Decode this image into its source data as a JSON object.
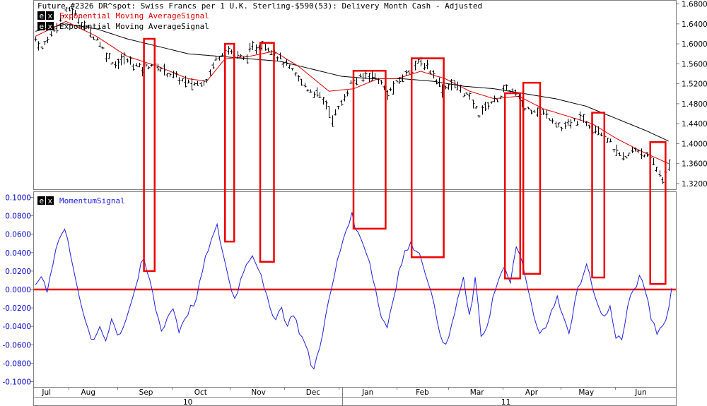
{
  "chart_data": [
    {
      "type": "line",
      "title": "Future #2326 DR^spot: Swiss Francs per 1 U.K. Sterling-$590(53): Delivery Month Cash -  Adjusted",
      "legend": [
        {
          "name": "Exponential Moving AverageSignal",
          "color": "#e00000",
          "badge": [
            "e",
            "x"
          ]
        },
        {
          "name": "Exponential Moving AverageSignal",
          "color": "#000000",
          "badge": [
            "e",
            "x"
          ]
        }
      ],
      "ylim": [
        1.31,
        1.685
      ],
      "yticks": [
        "1.6800",
        "1.6400",
        "1.6000",
        "1.5600",
        "1.5200",
        "1.4800",
        "1.4400",
        "1.4000",
        "1.3600",
        "1.3200"
      ],
      "xlabels": [
        "Jul",
        "Aug",
        "Sep",
        "Oct",
        "Nov",
        "Dec",
        "Jan",
        "Feb",
        "Mar",
        "Apr",
        "May",
        "Jun"
      ],
      "year_labels": [
        "10",
        "11"
      ],
      "price_anchors": [
        [
          0,
          1.61
        ],
        [
          2,
          1.59
        ],
        [
          5,
          1.62
        ],
        [
          8,
          1.65
        ],
        [
          11,
          1.67
        ],
        [
          14,
          1.65
        ],
        [
          17,
          1.63
        ],
        [
          20,
          1.61
        ],
        [
          23,
          1.58
        ],
        [
          26,
          1.56
        ],
        [
          29,
          1.57
        ],
        [
          32,
          1.56
        ],
        [
          35,
          1.55
        ],
        [
          38,
          1.56
        ],
        [
          41,
          1.55
        ],
        [
          44,
          1.54
        ],
        [
          47,
          1.53
        ],
        [
          50,
          1.52
        ],
        [
          53,
          1.52
        ],
        [
          56,
          1.53
        ],
        [
          59,
          1.57
        ],
        [
          62,
          1.59
        ],
        [
          65,
          1.58
        ],
        [
          68,
          1.57
        ],
        [
          71,
          1.59
        ],
        [
          74,
          1.6
        ],
        [
          77,
          1.59
        ],
        [
          80,
          1.57
        ],
        [
          83,
          1.55
        ],
        [
          86,
          1.53
        ],
        [
          89,
          1.51
        ],
        [
          92,
          1.5
        ],
        [
          95,
          1.48
        ],
        [
          97,
          1.45
        ],
        [
          100,
          1.48
        ],
        [
          103,
          1.52
        ],
        [
          106,
          1.53
        ],
        [
          109,
          1.54
        ],
        [
          112,
          1.53
        ],
        [
          115,
          1.5
        ],
        [
          118,
          1.52
        ],
        [
          121,
          1.54
        ],
        [
          124,
          1.56
        ],
        [
          127,
          1.56
        ],
        [
          130,
          1.54
        ],
        [
          133,
          1.51
        ],
        [
          136,
          1.52
        ],
        [
          139,
          1.51
        ],
        [
          142,
          1.49
        ],
        [
          145,
          1.46
        ],
        [
          148,
          1.48
        ],
        [
          151,
          1.49
        ],
        [
          154,
          1.51
        ],
        [
          157,
          1.5
        ],
        [
          160,
          1.47
        ],
        [
          163,
          1.47
        ],
        [
          166,
          1.46
        ],
        [
          169,
          1.45
        ],
        [
          172,
          1.43
        ],
        [
          175,
          1.44
        ],
        [
          178,
          1.45
        ],
        [
          181,
          1.44
        ],
        [
          184,
          1.43
        ],
        [
          187,
          1.41
        ],
        [
          190,
          1.38
        ],
        [
          193,
          1.37
        ],
        [
          196,
          1.39
        ],
        [
          199,
          1.38
        ],
        [
          202,
          1.36
        ],
        [
          205,
          1.33
        ],
        [
          207,
          1.35
        ]
      ],
      "ema_fast_anchors": [
        [
          0,
          1.615
        ],
        [
          10,
          1.645
        ],
        [
          20,
          1.615
        ],
        [
          30,
          1.575
        ],
        [
          40,
          1.555
        ],
        [
          50,
          1.53
        ],
        [
          56,
          1.525
        ],
        [
          62,
          1.57
        ],
        [
          70,
          1.575
        ],
        [
          78,
          1.585
        ],
        [
          86,
          1.555
        ],
        [
          96,
          1.505
        ],
        [
          104,
          1.51
        ],
        [
          112,
          1.53
        ],
        [
          118,
          1.53
        ],
        [
          126,
          1.545
        ],
        [
          134,
          1.53
        ],
        [
          142,
          1.505
        ],
        [
          150,
          1.49
        ],
        [
          158,
          1.495
        ],
        [
          166,
          1.47
        ],
        [
          174,
          1.455
        ],
        [
          182,
          1.44
        ],
        [
          190,
          1.41
        ],
        [
          198,
          1.385
        ],
        [
          207,
          1.36
        ]
      ],
      "ema_slow_anchors": [
        [
          0,
          1.625
        ],
        [
          10,
          1.64
        ],
        [
          20,
          1.63
        ],
        [
          30,
          1.61
        ],
        [
          40,
          1.595
        ],
        [
          50,
          1.58
        ],
        [
          60,
          1.575
        ],
        [
          70,
          1.57
        ],
        [
          80,
          1.565
        ],
        [
          90,
          1.55
        ],
        [
          100,
          1.535
        ],
        [
          110,
          1.53
        ],
        [
          120,
          1.53
        ],
        [
          130,
          1.525
        ],
        [
          140,
          1.515
        ],
        [
          150,
          1.51
        ],
        [
          160,
          1.5
        ],
        [
          170,
          1.49
        ],
        [
          180,
          1.475
        ],
        [
          190,
          1.45
        ],
        [
          200,
          1.425
        ],
        [
          207,
          1.405
        ]
      ]
    },
    {
      "type": "line",
      "title": "",
      "legend": [
        {
          "name": "MomentumSignal",
          "color": "#2020e0",
          "badge": [
            "e",
            "x"
          ]
        }
      ],
      "ylim": [
        -0.105,
        0.105
      ],
      "yticks": [
        "0.1000",
        "0.0800",
        "0.0600",
        "0.0400",
        "0.0200",
        "0.0000",
        "-0.0200",
        "-0.0400",
        "-0.0600",
        "-0.0800",
        "-0.1000"
      ],
      "zero_line_color": "#ee0000",
      "momentum_anchors": [
        [
          0,
          0.005
        ],
        [
          2,
          0.015
        ],
        [
          4,
          0.0
        ],
        [
          6,
          0.03
        ],
        [
          8,
          0.055
        ],
        [
          10,
          0.065
        ],
        [
          12,
          0.04
        ],
        [
          14,
          0.01
        ],
        [
          16,
          -0.025
        ],
        [
          18,
          -0.045
        ],
        [
          20,
          -0.058
        ],
        [
          22,
          -0.04
        ],
        [
          24,
          -0.055
        ],
        [
          26,
          -0.03
        ],
        [
          28,
          -0.05
        ],
        [
          30,
          -0.04
        ],
        [
          32,
          -0.02
        ],
        [
          34,
          0.0
        ],
        [
          36,
          0.025
        ],
        [
          37,
          0.03
        ],
        [
          39,
          0.01
        ],
        [
          41,
          -0.02
        ],
        [
          43,
          -0.045
        ],
        [
          45,
          -0.03
        ],
        [
          47,
          -0.02
        ],
        [
          49,
          -0.045
        ],
        [
          51,
          -0.03
        ],
        [
          53,
          -0.02
        ],
        [
          55,
          -0.01
        ],
        [
          57,
          0.02
        ],
        [
          59,
          0.045
        ],
        [
          61,
          0.06
        ],
        [
          62,
          0.068
        ],
        [
          64,
          0.04
        ],
        [
          66,
          0.01
        ],
        [
          68,
          -0.01
        ],
        [
          70,
          0.01
        ],
        [
          72,
          0.03
        ],
        [
          74,
          0.038
        ],
        [
          76,
          0.025
        ],
        [
          78,
          0.0
        ],
        [
          80,
          -0.02
        ],
        [
          82,
          -0.03
        ],
        [
          84,
          -0.02
        ],
        [
          86,
          -0.04
        ],
        [
          88,
          -0.025
        ],
        [
          90,
          -0.045
        ],
        [
          92,
          -0.06
        ],
        [
          94,
          -0.08
        ],
        [
          95,
          -0.087
        ],
        [
          97,
          -0.06
        ],
        [
          99,
          -0.03
        ],
        [
          101,
          0.0
        ],
        [
          103,
          0.03
        ],
        [
          105,
          0.055
        ],
        [
          107,
          0.075
        ],
        [
          108,
          0.08
        ],
        [
          110,
          0.06
        ],
        [
          112,
          0.05
        ],
        [
          114,
          0.03
        ],
        [
          116,
          0.0
        ],
        [
          118,
          -0.03
        ],
        [
          120,
          -0.04
        ],
        [
          122,
          -0.01
        ],
        [
          124,
          0.02
        ],
        [
          126,
          0.04
        ],
        [
          128,
          0.048
        ],
        [
          130,
          0.045
        ],
        [
          132,
          0.03
        ],
        [
          134,
          0.01
        ],
        [
          136,
          -0.02
        ],
        [
          138,
          -0.045
        ],
        [
          140,
          -0.063
        ],
        [
          142,
          -0.04
        ],
        [
          144,
          -0.01
        ],
        [
          146,
          0.01
        ],
        [
          148,
          -0.03
        ],
        [
          150,
          0.01
        ],
        [
          152,
          -0.05
        ],
        [
          154,
          -0.04
        ],
        [
          156,
          -0.01
        ],
        [
          158,
          0.01
        ],
        [
          160,
          0.022
        ],
        [
          162,
          0.01
        ],
        [
          164,
          0.043
        ],
        [
          166,
          0.03
        ],
        [
          168,
          0.0
        ],
        [
          170,
          -0.03
        ],
        [
          172,
          -0.05
        ],
        [
          174,
          -0.04
        ],
        [
          176,
          -0.02
        ],
        [
          178,
          -0.01
        ],
        [
          180,
          -0.03
        ],
        [
          182,
          -0.05
        ],
        [
          184,
          -0.01
        ],
        [
          186,
          0.01
        ],
        [
          188,
          0.025
        ],
        [
          190,
          0.005
        ],
        [
          192,
          -0.02
        ],
        [
          194,
          -0.03
        ],
        [
          196,
          -0.02
        ],
        [
          198,
          -0.05
        ],
        [
          200,
          -0.055
        ],
        [
          202,
          -0.02
        ],
        [
          204,
          0.0
        ],
        [
          206,
          0.012
        ],
        [
          208,
          0.0
        ],
        [
          210,
          -0.03
        ],
        [
          212,
          -0.045
        ],
        [
          214,
          -0.04
        ],
        [
          216,
          -0.02
        ],
        [
          217,
          0.0
        ]
      ]
    }
  ],
  "highlight_color": "#ee0000",
  "highlight_boxes": [
    {
      "bar_start": 35.5,
      "bar_end": 39.0,
      "top_price": 1.61,
      "bottom_momentum": 0.02
    },
    {
      "bar_start": 62.0,
      "bar_end": 65.0,
      "top_price": 1.6,
      "bottom_momentum": 0.052
    },
    {
      "bar_start": 73.5,
      "bar_end": 78.0,
      "top_price": 1.602,
      "bottom_momentum": 0.03
    },
    {
      "bar_start": 104.0,
      "bar_end": 114.5,
      "top_price": 1.546,
      "bottom_momentum": 0.066
    },
    {
      "bar_start": 123.0,
      "bar_end": 133.5,
      "top_price": 1.571,
      "bottom_momentum": 0.035
    },
    {
      "bar_start": 153.5,
      "bar_end": 158.5,
      "top_price": 1.501,
      "bottom_momentum": 0.012
    },
    {
      "bar_start": 159.5,
      "bar_end": 165.0,
      "top_price": 1.522,
      "bottom_momentum": 0.017
    },
    {
      "bar_start": 182.0,
      "bar_end": 186.0,
      "top_price": 1.462,
      "bottom_momentum": 0.013
    },
    {
      "bar_start": 201.0,
      "bar_end": 206.0,
      "top_price": 1.403,
      "bottom_momentum": 0.006
    }
  ]
}
